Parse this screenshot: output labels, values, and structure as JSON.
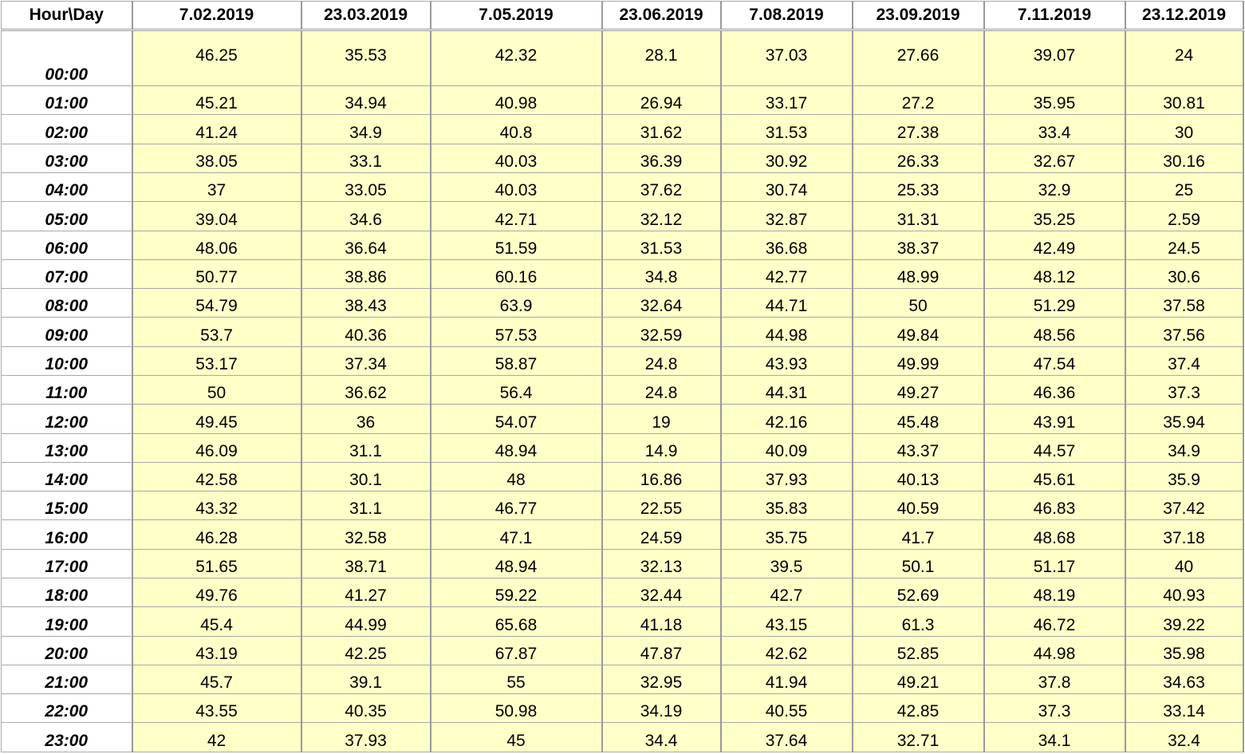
{
  "chart_data": {
    "type": "table",
    "corner_label": "Hour\\Day",
    "columns": [
      "7.02.2019",
      "23.03.2019",
      "7.05.2019",
      "23.06.2019",
      "7.08.2019",
      "23.09.2019",
      "7.11.2019",
      "23.12.2019"
    ],
    "rows": [
      {
        "hour": "00:00",
        "values": [
          "46.25",
          "35.53",
          "42.32",
          "28.1",
          "37.03",
          "27.66",
          "39.07",
          "24"
        ]
      },
      {
        "hour": "01:00",
        "values": [
          "45.21",
          "34.94",
          "40.98",
          "26.94",
          "33.17",
          "27.2",
          "35.95",
          "30.81"
        ]
      },
      {
        "hour": "02:00",
        "values": [
          "41.24",
          "34.9",
          "40.8",
          "31.62",
          "31.53",
          "27.38",
          "33.4",
          "30"
        ]
      },
      {
        "hour": "03:00",
        "values": [
          "38.05",
          "33.1",
          "40.03",
          "36.39",
          "30.92",
          "26.33",
          "32.67",
          "30.16"
        ]
      },
      {
        "hour": "04:00",
        "values": [
          "37",
          "33.05",
          "40.03",
          "37.62",
          "30.74",
          "25.33",
          "32.9",
          "25"
        ]
      },
      {
        "hour": "05:00",
        "values": [
          "39.04",
          "34.6",
          "42.71",
          "32.12",
          "32.87",
          "31.31",
          "35.25",
          "2.59"
        ]
      },
      {
        "hour": "06:00",
        "values": [
          "48.06",
          "36.64",
          "51.59",
          "31.53",
          "36.68",
          "38.37",
          "42.49",
          "24.5"
        ]
      },
      {
        "hour": "07:00",
        "values": [
          "50.77",
          "38.86",
          "60.16",
          "34.8",
          "42.77",
          "48.99",
          "48.12",
          "30.6"
        ]
      },
      {
        "hour": "08:00",
        "values": [
          "54.79",
          "38.43",
          "63.9",
          "32.64",
          "44.71",
          "50",
          "51.29",
          "37.58"
        ]
      },
      {
        "hour": "09:00",
        "values": [
          "53.7",
          "40.36",
          "57.53",
          "32.59",
          "44.98",
          "49.84",
          "48.56",
          "37.56"
        ]
      },
      {
        "hour": "10:00",
        "values": [
          "53.17",
          "37.34",
          "58.87",
          "24.8",
          "43.93",
          "49.99",
          "47.54",
          "37.4"
        ]
      },
      {
        "hour": "11:00",
        "values": [
          "50",
          "36.62",
          "56.4",
          "24.8",
          "44.31",
          "49.27",
          "46.36",
          "37.3"
        ]
      },
      {
        "hour": "12:00",
        "values": [
          "49.45",
          "36",
          "54.07",
          "19",
          "42.16",
          "45.48",
          "43.91",
          "35.94"
        ]
      },
      {
        "hour": "13:00",
        "values": [
          "46.09",
          "31.1",
          "48.94",
          "14.9",
          "40.09",
          "43.37",
          "44.57",
          "34.9"
        ]
      },
      {
        "hour": "14:00",
        "values": [
          "42.58",
          "30.1",
          "48",
          "16.86",
          "37.93",
          "40.13",
          "45.61",
          "35.9"
        ]
      },
      {
        "hour": "15:00",
        "values": [
          "43.32",
          "31.1",
          "46.77",
          "22.55",
          "35.83",
          "40.59",
          "46.83",
          "37.42"
        ]
      },
      {
        "hour": "16:00",
        "values": [
          "46.28",
          "32.58",
          "47.1",
          "24.59",
          "35.75",
          "41.7",
          "48.68",
          "37.18"
        ]
      },
      {
        "hour": "17:00",
        "values": [
          "51.65",
          "38.71",
          "48.94",
          "32.13",
          "39.5",
          "50.1",
          "51.17",
          "40"
        ]
      },
      {
        "hour": "18:00",
        "values": [
          "49.76",
          "41.27",
          "59.22",
          "32.44",
          "42.7",
          "52.69",
          "48.19",
          "40.93"
        ]
      },
      {
        "hour": "19:00",
        "values": [
          "45.4",
          "44.99",
          "65.68",
          "41.18",
          "43.15",
          "61.3",
          "46.72",
          "39.22"
        ]
      },
      {
        "hour": "20:00",
        "values": [
          "43.19",
          "42.25",
          "67.87",
          "47.87",
          "42.62",
          "52.85",
          "44.98",
          "35.98"
        ]
      },
      {
        "hour": "21:00",
        "values": [
          "45.7",
          "39.1",
          "55",
          "32.95",
          "41.94",
          "49.21",
          "37.8",
          "34.63"
        ]
      },
      {
        "hour": "22:00",
        "values": [
          "43.55",
          "40.35",
          "50.98",
          "34.19",
          "40.55",
          "42.85",
          "37.3",
          "33.14"
        ]
      },
      {
        "hour": "23:00",
        "values": [
          "42",
          "37.93",
          "45",
          "34.4",
          "37.64",
          "32.71",
          "34.1",
          "32.4"
        ]
      }
    ],
    "colors": {
      "cell_fill": "#ffffc8",
      "header_fill": "#ffffff",
      "grid_line": "#a8a8a8"
    }
  }
}
